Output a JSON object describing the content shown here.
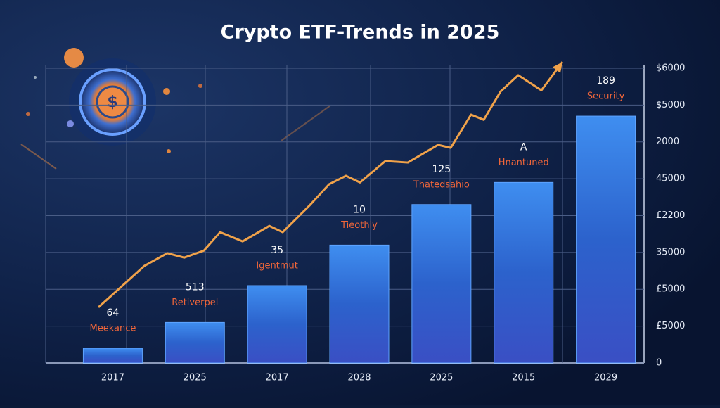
{
  "chart_data": [
    {
      "type": "bar",
      "title": "Crypto ETF-Trends in 2025",
      "categories": [
        "2017",
        "2025",
        "2017",
        "2028",
        "2025",
        "2015",
        "2029"
      ],
      "values": [
        0.4,
        1.1,
        2.1,
        3.2,
        4.3,
        4.9,
        6.7
      ],
      "bar_labels": [
        "64",
        "513",
        "35",
        "10",
        "125",
        "A",
        "189"
      ],
      "bar_captions": [
        "Meekance",
        "Retiverpel",
        "Igentmut",
        "Tieothiy",
        "Thatedsahio",
        "Hnantuned",
        "Security"
      ],
      "color": "#2f6fd8",
      "ylim": [
        0,
        8.2
      ],
      "yticks": [
        0,
        {
          "value": 1,
          "label": "£5000"
        },
        {
          "value": 2,
          "label": "£5000"
        },
        {
          "value": 3,
          "label": "35000"
        },
        {
          "value": 4,
          "label": "£2200"
        },
        {
          "value": 5,
          "label": "45000"
        },
        {
          "value": 6,
          "label": "2000"
        },
        {
          "value": 7,
          "label": "$5000"
        },
        {
          "value": 8,
          "label": "$6000"
        }
      ],
      "grid": true
    },
    {
      "type": "line",
      "color": "#f0a24a",
      "x": [
        75,
        140,
        173,
        197,
        225,
        248,
        280,
        318,
        337,
        375,
        403,
        427,
        447,
        483,
        515,
        558,
        576,
        605,
        623,
        647,
        672,
        705,
        735
      ],
      "values": [
        1.51,
        2.63,
        2.98,
        2.86,
        3.05,
        3.55,
        3.3,
        3.72,
        3.55,
        4.27,
        4.85,
        5.08,
        4.9,
        5.48,
        5.44,
        5.92,
        5.84,
        6.74,
        6.6,
        7.37,
        7.81,
        7.4,
        8.17
      ],
      "xlim": [
        0,
        850
      ],
      "ylim": [
        0,
        8.2
      ]
    }
  ]
}
